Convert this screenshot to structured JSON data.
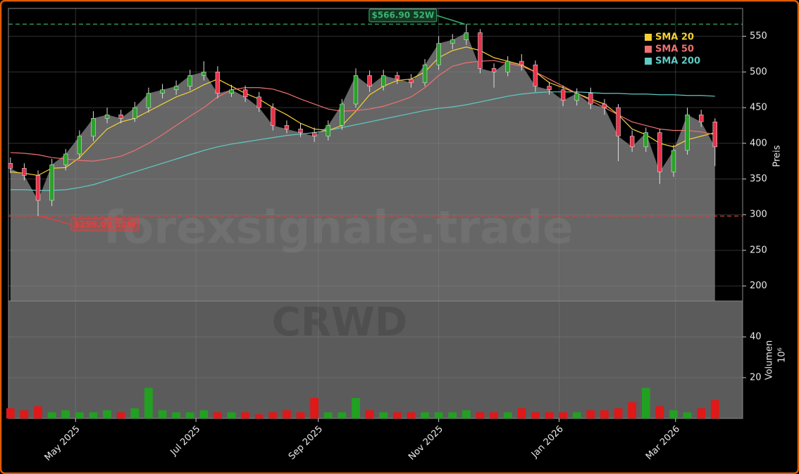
{
  "chart_data": [
    {
      "type": "candlestick",
      "watermark": "forexsignale.trade",
      "y_label": "Preis",
      "x": [
        -33,
        -26,
        -19,
        -12,
        -5,
        2,
        9,
        16,
        23,
        30,
        37,
        44,
        51,
        58,
        65,
        72,
        79,
        86,
        93,
        100,
        107,
        114,
        121,
        128,
        135,
        142,
        149,
        156,
        163,
        170,
        177,
        184,
        191,
        198,
        205,
        212,
        219,
        226,
        233,
        240,
        247,
        254,
        261,
        268,
        275,
        282,
        289,
        296,
        303,
        310,
        317,
        324
      ],
      "open": [
        372,
        365,
        355,
        320,
        370,
        385,
        410,
        435,
        440,
        435,
        450,
        470,
        475,
        480,
        495,
        500,
        470,
        475,
        465,
        450,
        425,
        420,
        415,
        410,
        425,
        455,
        495,
        480,
        495,
        490,
        485,
        510,
        540,
        545,
        555,
        505,
        500,
        515,
        510,
        480,
        475,
        460,
        470,
        455,
        450,
        410,
        395,
        415,
        360,
        390,
        440,
        430
      ],
      "high": [
        380,
        372,
        362,
        378,
        392,
        418,
        445,
        450,
        447,
        458,
        478,
        483,
        488,
        503,
        515,
        508,
        482,
        481,
        472,
        456,
        432,
        428,
        422,
        432,
        462,
        505,
        502,
        503,
        500,
        497,
        518,
        550,
        553,
        566.9,
        560,
        512,
        522,
        525,
        516,
        486,
        481,
        477,
        478,
        462,
        455,
        418,
        422,
        420,
        398,
        450,
        447,
        435
      ],
      "low": [
        358,
        348,
        298,
        312,
        362,
        378,
        403,
        428,
        428,
        430,
        443,
        463,
        468,
        474,
        488,
        463,
        465,
        458,
        444,
        418,
        414,
        409,
        402,
        404,
        419,
        450,
        472,
        474,
        483,
        478,
        480,
        503,
        532,
        538,
        498,
        478,
        494,
        502,
        472,
        468,
        452,
        453,
        448,
        440,
        375,
        388,
        388,
        343,
        353,
        384,
        423,
        368
      ],
      "close": [
        365,
        355,
        320,
        370,
        385,
        410,
        435,
        440,
        435,
        450,
        470,
        475,
        480,
        495,
        500,
        470,
        475,
        465,
        450,
        425,
        420,
        415,
        410,
        425,
        455,
        495,
        480,
        495,
        490,
        485,
        510,
        540,
        545,
        555,
        505,
        500,
        515,
        510,
        480,
        475,
        460,
        470,
        455,
        450,
        410,
        395,
        415,
        360,
        390,
        440,
        430,
        395
      ],
      "up_color": "#2ca02c",
      "down_color": "#e8334a",
      "area_color": "#666666",
      "series": [
        {
          "name": "SMA 20",
          "color": "#f5d033",
          "values": [
            360,
            358,
            355,
            365,
            366,
            380,
            400,
            420,
            430,
            435,
            445,
            455,
            465,
            472,
            482,
            490,
            480,
            470,
            462,
            450,
            440,
            428,
            420,
            418,
            425,
            445,
            468,
            480,
            488,
            490,
            500,
            520,
            530,
            535,
            530,
            520,
            515,
            510,
            500,
            485,
            478,
            470,
            462,
            455,
            440,
            420,
            412,
            400,
            395,
            405,
            410,
            415
          ]
        },
        {
          "name": "SMA 50",
          "color": "#f07070",
          "values": [
            387,
            386,
            384,
            380,
            378,
            376,
            375,
            378,
            382,
            390,
            400,
            412,
            425,
            438,
            450,
            465,
            475,
            478,
            478,
            476,
            470,
            462,
            455,
            448,
            445,
            446,
            448,
            452,
            458,
            465,
            478,
            495,
            508,
            513,
            515,
            516,
            512,
            508,
            500,
            490,
            480,
            470,
            460,
            450,
            440,
            430,
            425,
            420,
            418,
            418,
            416,
            412
          ]
        },
        {
          "name": "SMA 200",
          "color": "#5ecbc4",
          "values": [
            335,
            335,
            334,
            334,
            335,
            338,
            342,
            348,
            354,
            360,
            366,
            372,
            378,
            384,
            390,
            395,
            399,
            402,
            405,
            408,
            411,
            413,
            415,
            418,
            422,
            426,
            430,
            434,
            438,
            442,
            446,
            449,
            451,
            454,
            458,
            462,
            466,
            469,
            471,
            472,
            472,
            472,
            471,
            470,
            470,
            469,
            469,
            468,
            468,
            467,
            467,
            466
          ]
        }
      ],
      "hlines": [
        {
          "value": 566.9,
          "label": "$566.90 52W",
          "color": "#3cb371"
        },
        {
          "value": 298,
          "label": "$298.00 52W",
          "color": "#e04040"
        }
      ],
      "xlim": [
        -34,
        338
      ],
      "ylim": [
        179,
        589
      ],
      "yticks": [
        200,
        250,
        300,
        350,
        400,
        450,
        500,
        550
      ],
      "grid": true,
      "legend": "upper right"
    },
    {
      "type": "bar",
      "watermark": "CRWD",
      "y_label": "Volumen",
      "y_exponent": "10⁶",
      "x": [
        -33,
        -26,
        -19,
        -12,
        -5,
        2,
        9,
        16,
        23,
        30,
        37,
        44,
        51,
        58,
        65,
        72,
        79,
        86,
        93,
        100,
        107,
        114,
        121,
        128,
        135,
        142,
        149,
        156,
        163,
        170,
        177,
        184,
        191,
        198,
        205,
        212,
        219,
        226,
        233,
        240,
        247,
        254,
        261,
        268,
        275,
        282,
        289,
        296,
        303,
        310,
        317,
        324
      ],
      "values": [
        5,
        4,
        6,
        3,
        4,
        3,
        3,
        4,
        3,
        5,
        15,
        4,
        3,
        3,
        4,
        3,
        3,
        3,
        2,
        3,
        4,
        3,
        10,
        3,
        3,
        10,
        4,
        3,
        3,
        3,
        3,
        3,
        3,
        4,
        3,
        3,
        3,
        5,
        3,
        3,
        3,
        3,
        4,
        4,
        5,
        8,
        15,
        6,
        4,
        3,
        5,
        9
      ],
      "up_color": "#22a022",
      "down_color": "#e01818",
      "xlim": [
        -34,
        338
      ],
      "ylim": [
        0,
        57.6
      ],
      "yticks": [
        20,
        40
      ],
      "xticks": [
        {
          "value": 0,
          "label": "May 2025"
        },
        {
          "value": 61,
          "label": "Jul 2025"
        },
        {
          "value": 123,
          "label": "Sep 2025"
        },
        {
          "value": 184,
          "label": "Nov 2025"
        },
        {
          "value": 245,
          "label": "Jan 2026"
        },
        {
          "value": 304,
          "label": "Mar 2026"
        }
      ],
      "grid": true
    }
  ]
}
